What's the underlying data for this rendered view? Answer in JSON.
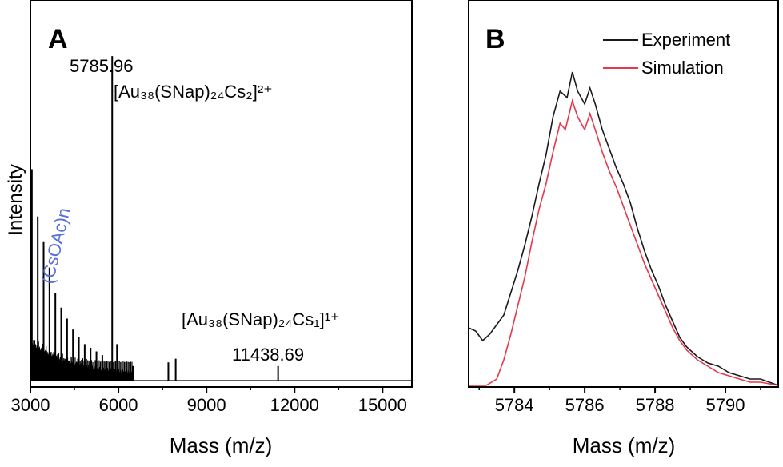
{
  "colors": {
    "experiment": "#1a1a1a",
    "simulation": "#e8364a",
    "annotation": "#5a6fd6",
    "axis": "#000000"
  },
  "chart_data": [
    {
      "panel": "A",
      "type": "line",
      "title": "",
      "xlabel": "Mass (m/z)",
      "ylabel": "Intensity",
      "xlim": [
        3000,
        16000
      ],
      "ylim": [
        0,
        1
      ],
      "xticks": [
        3000,
        6000,
        9000,
        12000,
        15000
      ],
      "xtick_labels": [
        "3000",
        "6000",
        "9000",
        "12000",
        "15000"
      ],
      "peaks": [
        {
          "x": 3050,
          "y": 0.58
        },
        {
          "x": 3250,
          "y": 0.45
        },
        {
          "x": 3450,
          "y": 0.38
        },
        {
          "x": 3650,
          "y": 0.31
        },
        {
          "x": 3850,
          "y": 0.24
        },
        {
          "x": 4050,
          "y": 0.2
        },
        {
          "x": 4250,
          "y": 0.17
        },
        {
          "x": 4450,
          "y": 0.14
        },
        {
          "x": 4650,
          "y": 0.12
        },
        {
          "x": 4850,
          "y": 0.1
        },
        {
          "x": 5050,
          "y": 0.09
        },
        {
          "x": 5250,
          "y": 0.08
        },
        {
          "x": 5450,
          "y": 0.07
        },
        {
          "x": 5786,
          "y": 0.89
        },
        {
          "x": 5950,
          "y": 0.1
        },
        {
          "x": 6500,
          "y": 0.04
        },
        {
          "x": 7700,
          "y": 0.05
        },
        {
          "x": 7950,
          "y": 0.06
        },
        {
          "x": 11439,
          "y": 0.04
        }
      ],
      "annotations": {
        "peak1_value": "5785.96",
        "peak1_formula": "[Au₃₈(SNap)₂₄Cs₂]²⁺",
        "peak2_value": "11438.69",
        "peak2_formula": "[Au₃₈(SNap)₂₄Cs₁]¹⁺",
        "series_label": "(CsOAc)n"
      }
    },
    {
      "panel": "B",
      "type": "line",
      "title": "",
      "xlabel": "Mass (m/z)",
      "ylabel": "",
      "xlim": [
        5782.7,
        5791.5
      ],
      "ylim": [
        0,
        1
      ],
      "xticks": [
        5784,
        5786,
        5788,
        5790
      ],
      "xtick_labels": [
        "5784",
        "5786",
        "5788",
        "5790"
      ],
      "legend": "top-right",
      "series": [
        {
          "name": "Experiment",
          "x": [
            5782.7,
            5782.9,
            5783.1,
            5783.3,
            5783.5,
            5783.7,
            5783.9,
            5784.1,
            5784.3,
            5784.5,
            5784.7,
            5784.9,
            5785.1,
            5785.3,
            5785.5,
            5785.65,
            5785.8,
            5786.0,
            5786.15,
            5786.3,
            5786.5,
            5786.7,
            5786.9,
            5787.1,
            5787.3,
            5787.5,
            5787.7,
            5787.9,
            5788.1,
            5788.3,
            5788.5,
            5788.7,
            5788.9,
            5789.2,
            5789.5,
            5789.8,
            5790.1,
            5790.4,
            5790.7,
            5791.0,
            5791.5
          ],
          "values": [
            0.18,
            0.17,
            0.14,
            0.16,
            0.19,
            0.22,
            0.29,
            0.36,
            0.44,
            0.53,
            0.63,
            0.72,
            0.84,
            0.92,
            0.9,
            0.98,
            0.92,
            0.88,
            0.93,
            0.88,
            0.8,
            0.74,
            0.68,
            0.63,
            0.57,
            0.49,
            0.42,
            0.36,
            0.31,
            0.25,
            0.2,
            0.15,
            0.12,
            0.09,
            0.07,
            0.06,
            0.04,
            0.03,
            0.02,
            0.02,
            0.0
          ]
        },
        {
          "name": "Simulation",
          "x": [
            5782.7,
            5783.2,
            5783.5,
            5783.7,
            5783.9,
            5784.1,
            5784.3,
            5784.5,
            5784.7,
            5784.9,
            5785.1,
            5785.3,
            5785.45,
            5785.65,
            5785.8,
            5786.0,
            5786.15,
            5786.3,
            5786.5,
            5786.7,
            5786.9,
            5787.1,
            5787.3,
            5787.5,
            5787.7,
            5787.9,
            5788.1,
            5788.3,
            5788.5,
            5788.7,
            5788.9,
            5789.2,
            5789.5,
            5789.8,
            5790.1,
            5790.4,
            5790.7,
            5791.0,
            5791.5
          ],
          "values": [
            0.0,
            0.0,
            0.02,
            0.08,
            0.16,
            0.25,
            0.34,
            0.45,
            0.55,
            0.63,
            0.73,
            0.82,
            0.8,
            0.89,
            0.84,
            0.8,
            0.85,
            0.8,
            0.73,
            0.67,
            0.62,
            0.56,
            0.5,
            0.44,
            0.38,
            0.33,
            0.28,
            0.23,
            0.18,
            0.14,
            0.11,
            0.08,
            0.06,
            0.04,
            0.03,
            0.02,
            0.01,
            0.01,
            0.0
          ]
        }
      ]
    }
  ],
  "panelA": {
    "letter": "A",
    "xlabel": "Mass (m/z)",
    "ylabel": "Intensity"
  },
  "panelB": {
    "letter": "B",
    "xlabel": "Mass (m/z)",
    "legend_exp": "Experiment",
    "legend_sim": "Simulation"
  }
}
